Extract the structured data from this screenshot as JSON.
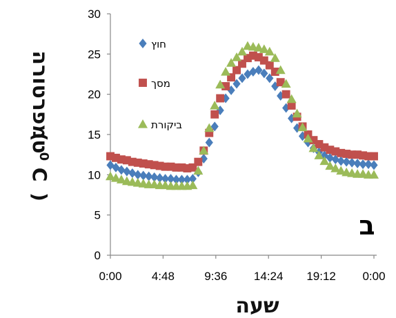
{
  "chart_data": {
    "type": "scatter",
    "ylabel": "טמפרטורה (0C)",
    "ylabel_parts": {
      "prefix": "טמפרטורה",
      "open": "(",
      "sup": "0",
      "unit": "C",
      "close": ")"
    },
    "xlabel": "שעה",
    "panel_label": "ב",
    "ylim": [
      0,
      30
    ],
    "yticks": [
      0,
      5,
      10,
      15,
      20,
      25,
      30
    ],
    "xlim": [
      0,
      1440
    ],
    "xticks": [
      0,
      288,
      576,
      864,
      1152,
      1440
    ],
    "xtick_labels": [
      "0:00",
      "4:48",
      "9:36",
      "14:24",
      "19:12",
      "0:00"
    ],
    "grid": false,
    "legend_position": "top-left",
    "x": [
      0,
      30,
      60,
      90,
      120,
      150,
      180,
      210,
      240,
      270,
      300,
      330,
      360,
      390,
      420,
      450,
      480,
      510,
      540,
      570,
      600,
      630,
      660,
      690,
      720,
      750,
      780,
      810,
      840,
      870,
      900,
      930,
      960,
      990,
      1020,
      1050,
      1080,
      1110,
      1140,
      1170,
      1200,
      1230,
      1260,
      1290,
      1320,
      1350,
      1380,
      1410,
      1440
    ],
    "series": [
      {
        "name": "חוץ",
        "marker": "diamond",
        "color": "#4a7ebb",
        "values": [
          11.2,
          10.9,
          10.6,
          10.4,
          10.2,
          10.0,
          9.9,
          9.8,
          9.7,
          9.6,
          9.5,
          9.5,
          9.4,
          9.4,
          9.4,
          9.5,
          10.3,
          12.0,
          14.0,
          16.0,
          18.0,
          19.5,
          20.5,
          21.3,
          22.0,
          22.5,
          22.8,
          23.0,
          22.6,
          22.0,
          21.0,
          19.8,
          18.3,
          17.0,
          15.8,
          14.8,
          14.0,
          13.3,
          12.8,
          12.4,
          12.1,
          11.9,
          11.7,
          11.6,
          11.5,
          11.4,
          11.3,
          11.3,
          11.2
        ]
      },
      {
        "name": "מסך",
        "marker": "square",
        "color": "#c0504d",
        "values": [
          12.3,
          12.1,
          11.9,
          11.8,
          11.6,
          11.5,
          11.4,
          11.3,
          11.2,
          11.1,
          11.0,
          11.0,
          10.9,
          10.9,
          10.8,
          10.9,
          11.6,
          13.0,
          15.2,
          17.5,
          19.5,
          21.0,
          22.1,
          23.0,
          23.8,
          24.5,
          24.8,
          24.6,
          24.2,
          23.6,
          22.8,
          21.5,
          20.0,
          18.6,
          17.2,
          16.0,
          15.0,
          14.3,
          13.8,
          13.4,
          13.1,
          12.9,
          12.7,
          12.6,
          12.5,
          12.5,
          12.4,
          12.3,
          12.3
        ]
      },
      {
        "name": "ביקורת",
        "marker": "triangle",
        "color": "#9bbb59",
        "values": [
          9.8,
          9.6,
          9.4,
          9.2,
          9.1,
          9.0,
          8.9,
          8.8,
          8.8,
          8.7,
          8.7,
          8.6,
          8.6,
          8.6,
          8.6,
          8.7,
          10.5,
          13.0,
          15.8,
          18.6,
          21.2,
          22.8,
          23.9,
          24.6,
          25.3,
          26.0,
          25.9,
          25.8,
          25.6,
          25.3,
          24.5,
          23.0,
          21.3,
          19.4,
          17.6,
          15.9,
          14.5,
          13.3,
          12.4,
          11.7,
          11.1,
          10.8,
          10.5,
          10.3,
          10.2,
          10.1,
          10.1,
          10.0,
          10.0
        ]
      }
    ]
  }
}
